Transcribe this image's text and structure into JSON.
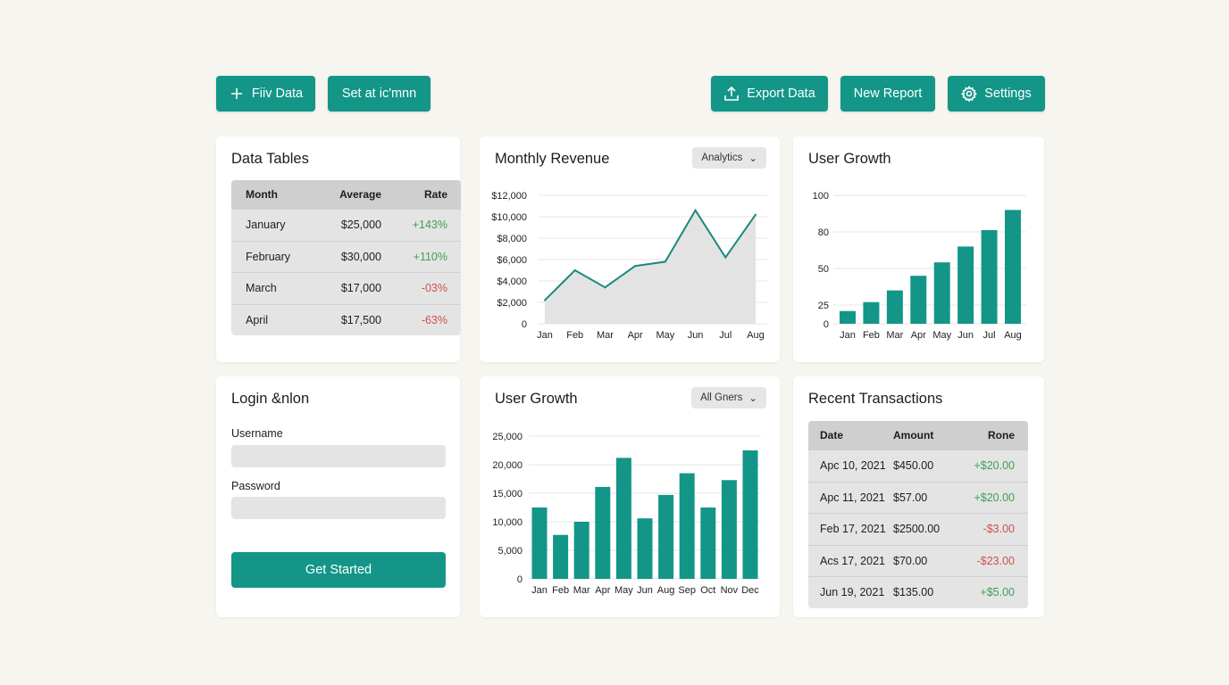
{
  "toolbar": {
    "left": [
      "Fiiv Data",
      "Set at ic'mnn"
    ],
    "right": [
      "Export Data",
      "New Report",
      "Settings"
    ]
  },
  "colors": {
    "accent": "#139688",
    "positive": "#3f9e55",
    "negative": "#d0504d",
    "background": "#f6f5ef"
  },
  "data_tables": {
    "title": "Data Tables",
    "columns": [
      "Month",
      "Average",
      "Rate"
    ],
    "rows": [
      [
        "January",
        "$25,000",
        "+143%"
      ],
      [
        "February",
        "$30,000",
        "+110%"
      ],
      [
        "March",
        "$17,000",
        "-03%"
      ],
      [
        "April",
        "$17,500",
        "-63%"
      ]
    ]
  },
  "login": {
    "title": "Login &nlon",
    "username_label": "Username",
    "username_value": "",
    "password_label": "Password",
    "password_value": "",
    "submit": "Get Started"
  },
  "transactions": {
    "title": "Recent Transactions",
    "columns": [
      "Date",
      "Amount",
      "Rone"
    ],
    "rows": [
      [
        "Apc 10, 2021",
        "$450.00",
        "+$20.00"
      ],
      [
        "Apc 11, 2021",
        "$57.00",
        "+$20.00"
      ],
      [
        "Feb 17, 2021",
        "$2500.00",
        "-$3.00"
      ],
      [
        "Acs 17, 2021",
        "$70.00",
        "-$23.00"
      ],
      [
        "Jun 19, 2021",
        "$135.00",
        "+$5.00"
      ]
    ]
  },
  "revenue_filter": "Analytics",
  "growth_filter": "All Gners",
  "chart_data": [
    {
      "type": "area",
      "title": "Monthly Revenue",
      "categories": [
        "Jan",
        "Feb",
        "Mar",
        "Apr",
        "May",
        "Jun",
        "Jul",
        "Aug"
      ],
      "values": [
        2200,
        5000,
        3400,
        5400,
        5800,
        10600,
        6200,
        10200
      ],
      "ylim": [
        0,
        12000
      ],
      "yticks": [
        0,
        2000,
        4000,
        6000,
        8000,
        10000,
        12000
      ],
      "ytick_labels": [
        "0",
        "$2,000",
        "$4,000",
        "$6,000",
        "$8,000",
        "$10,000",
        "$12,000"
      ],
      "grid": true
    },
    {
      "type": "bar",
      "title": "User Growth",
      "categories": [
        "Jan",
        "Feb",
        "Mar",
        "Apr",
        "May",
        "Jun",
        "Jul",
        "Aug"
      ],
      "values": [
        17,
        27,
        35,
        45,
        55,
        68,
        81,
        92
      ],
      "ylim": [
        0,
        100
      ],
      "yticks": [
        0,
        25,
        50,
        80,
        100
      ],
      "ytick_labels": [
        "0",
        "25",
        "50",
        "80",
        "100"
      ],
      "grid": true
    },
    {
      "type": "bar",
      "title": "User Growth",
      "categories": [
        "Jan",
        "Feb",
        "Mar",
        "Apr",
        "May",
        "Jun",
        "Aug",
        "Sep",
        "Oct",
        "Nov",
        "Dec"
      ],
      "values": [
        12500,
        7700,
        10000,
        16100,
        21200,
        10600,
        14700,
        18500,
        12500,
        17300,
        22500
      ],
      "ylim": [
        0,
        25000
      ],
      "yticks": [
        0,
        5000,
        10000,
        15000,
        20000,
        25000
      ],
      "ytick_labels": [
        "0",
        "5,000",
        "10,000",
        "15,000",
        "20,000",
        "25,000"
      ],
      "grid": true
    }
  ]
}
